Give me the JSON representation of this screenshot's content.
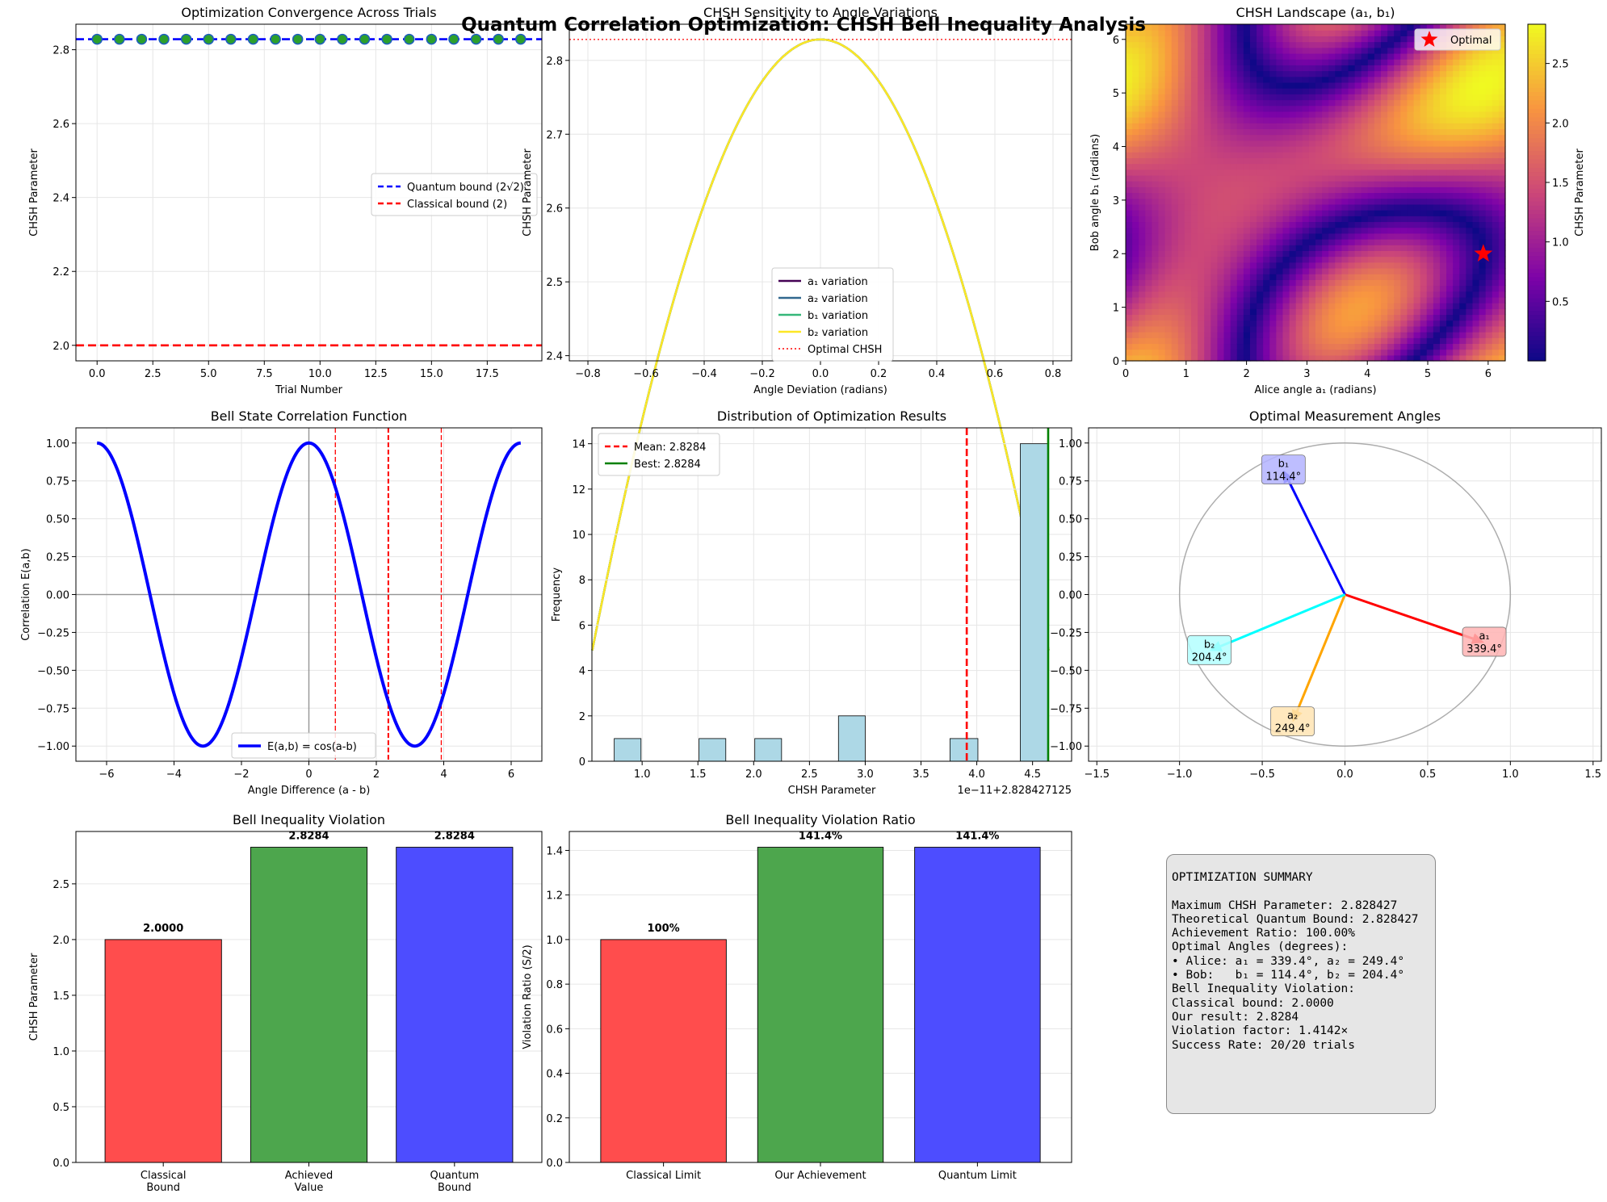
{
  "suptitle": "Quantum Correlation Optimization: CHSH Bell Inequality Analysis",
  "colors": {
    "quantum": "#0000ff",
    "classical": "#ff0000",
    "marker_face": "#2ca02c",
    "hist_fill": "#add8e6",
    "bar_red": "#ff4d4d",
    "bar_green": "#4da64d",
    "bar_blue": "#4d4dff",
    "a1": "#ff0000",
    "a2": "#ffa500",
    "b1": "#0000ff",
    "b2": "#00ffff"
  },
  "summary": {
    "title": "OPTIMIZATION SUMMARY",
    "lines": [
      "Maximum CHSH Parameter: 2.828427",
      "Theoretical Quantum Bound: 2.828427",
      "Achievement Ratio: 100.00%",
      "",
      "Optimal Angles (degrees):",
      "• Alice: a₁ = 339.4°, a₂ = 249.4°",
      "• Bob:   b₁ = 114.4°, b₂ = 204.4°",
      "",
      "Bell Inequality Violation:",
      "Classical bound: 2.0000",
      "Our result: 2.8284",
      "Violation factor: 1.4142×",
      "",
      "Success Rate: 20/20 trials"
    ]
  },
  "chart_data": [
    {
      "id": "convergence",
      "type": "scatter",
      "title": "Optimization Convergence Across Trials",
      "xlabel": "Trial Number",
      "ylabel": "CHSH Parameter",
      "xlim": [
        -0.95,
        19.95
      ],
      "ylim": [
        1.958,
        2.869
      ],
      "xticks": [
        0.0,
        2.5,
        5.0,
        7.5,
        10.0,
        12.5,
        15.0,
        17.5
      ],
      "yticks": [
        2.0,
        2.2,
        2.4,
        2.6,
        2.8
      ],
      "x": [
        0,
        1,
        2,
        3,
        4,
        5,
        6,
        7,
        8,
        9,
        10,
        11,
        12,
        13,
        14,
        15,
        16,
        17,
        18,
        19
      ],
      "y": [
        2.8284,
        2.8284,
        2.8284,
        2.8284,
        2.8284,
        2.8284,
        2.8284,
        2.8284,
        2.8284,
        2.8284,
        2.8284,
        2.8284,
        2.8284,
        2.8284,
        2.8284,
        2.8284,
        2.8284,
        2.8284,
        2.8284,
        2.8284
      ],
      "hlines": [
        {
          "y": 2.8284,
          "color": "#0000ff",
          "label": "Quantum bound (2√2)"
        },
        {
          "y": 2.0,
          "color": "#ff0000",
          "label": "Classical bound (2)"
        }
      ],
      "legend": "center-right",
      "grid": true
    },
    {
      "id": "sensitivity",
      "type": "line",
      "title": "CHSH Sensitivity to Angle Variations",
      "xlabel": "Angle Deviation (radians)",
      "ylabel": "CHSH Parameter",
      "xlim": [
        -0.864,
        0.864
      ],
      "ylim": [
        2.393,
        2.849
      ],
      "xticks": [
        -0.8,
        -0.6,
        -0.4,
        -0.2,
        0.0,
        0.2,
        0.4,
        0.6,
        0.8
      ],
      "yticks": [
        2.4,
        2.5,
        2.6,
        2.7,
        2.8
      ],
      "curve": "2√2·cos(δ)",
      "x_range": [
        -0.785,
        0.785
      ],
      "series": [
        {
          "name": "a₁ variation",
          "color": "#440154"
        },
        {
          "name": "a₂ variation",
          "color": "#31688e"
        },
        {
          "name": "b₁ variation",
          "color": "#35b779"
        },
        {
          "name": "b₂ variation",
          "color": "#fde725"
        }
      ],
      "hline": {
        "y": 2.8284,
        "color": "#ff0000",
        "label": "Optimal CHSH"
      },
      "legend": "lower-center",
      "grid": true
    },
    {
      "id": "landscape",
      "type": "heatmap",
      "title": "CHSH Landscape (a₁, b₁)",
      "xlabel": "Alice angle a₁ (radians)",
      "ylabel": "Bob angle b₁ (radians)",
      "xlim": [
        0,
        6.283
      ],
      "ylim": [
        0,
        6.283
      ],
      "xticks": [
        0,
        1,
        2,
        3,
        4,
        5,
        6
      ],
      "yticks": [
        0,
        1,
        2,
        3,
        4,
        5,
        6
      ],
      "colorbar_label": "CHSH Parameter",
      "colorbar_ticks": [
        0.5,
        1.0,
        1.5,
        2.0,
        2.5
      ],
      "colorbar_range": [
        0,
        2.83
      ],
      "optimal_point": {
        "x": 5.92,
        "y": 2.0,
        "label": "Optimal"
      },
      "legend": "top-right"
    },
    {
      "id": "correlation",
      "type": "line",
      "title": "Bell State Correlation Function",
      "xlabel": "Angle Difference (a - b)",
      "ylabel": "Correlation E(a,b)",
      "xlim": [
        -6.91,
        6.91
      ],
      "ylim": [
        -1.1,
        1.1
      ],
      "xticks": [
        -6,
        -4,
        -2,
        0,
        2,
        4,
        6
      ],
      "yticks": [
        -1.0,
        -0.75,
        -0.5,
        -0.25,
        0.0,
        0.25,
        0.5,
        0.75,
        1.0
      ],
      "series": [
        {
          "name": "E(a,b) = cos(a-b)",
          "color": "#0000ff",
          "x_range": [
            -6.283,
            6.283
          ]
        }
      ],
      "vlines": [
        0.785,
        2.356,
        3.927
      ],
      "legend": "lower-center",
      "grid": true
    },
    {
      "id": "histogram",
      "type": "bar",
      "title": "Distribution of Optimization Results",
      "xlabel": "CHSH Parameter",
      "ylabel": "Frequency",
      "offset_label": "1e−11+2.828427125",
      "xlim": [
        0.55,
        4.85
      ],
      "ylim": [
        0,
        14.7
      ],
      "xticks": [
        1.0,
        1.5,
        2.0,
        2.5,
        3.0,
        3.5,
        4.0,
        4.5
      ],
      "yticks": [
        0,
        2,
        4,
        6,
        8,
        10,
        12,
        14
      ],
      "bins": [
        {
          "x0": 0.75,
          "x1": 0.99,
          "count": 1
        },
        {
          "x0": 1.51,
          "x1": 1.75,
          "count": 1
        },
        {
          "x0": 2.01,
          "x1": 2.25,
          "count": 1
        },
        {
          "x0": 2.76,
          "x1": 3.0,
          "count": 2
        },
        {
          "x0": 3.76,
          "x1": 4.01,
          "count": 1
        },
        {
          "x0": 4.39,
          "x1": 4.64,
          "count": 14
        }
      ],
      "mean": {
        "x": 3.91,
        "label": "Mean: 2.8284"
      },
      "best": {
        "x": 4.64,
        "label": "Best: 2.8284"
      },
      "legend": "top-left",
      "grid": true
    },
    {
      "id": "angles",
      "type": "scatter",
      "title": "Optimal Measurement Angles",
      "xlim": [
        -1.55,
        1.55
      ],
      "ylim": [
        -1.1,
        1.1
      ],
      "xticks": [
        -1.5,
        -1.0,
        -0.5,
        0.0,
        0.5,
        1.0,
        1.5
      ],
      "yticks": [
        -1.0,
        -0.75,
        -0.5,
        -0.25,
        0.0,
        0.25,
        0.5,
        0.75,
        1.0
      ],
      "vectors": [
        {
          "name": "a₁",
          "deg": 339.4,
          "label": "339.4°",
          "color": "#ff0000",
          "box": "#ffb3b3"
        },
        {
          "name": "a₂",
          "deg": 249.4,
          "label": "249.4°",
          "color": "#ffa500",
          "box": "#ffe4b3"
        },
        {
          "name": "b₁",
          "deg": 114.4,
          "label": "114.4°",
          "color": "#0000ff",
          "box": "#b3b3ff"
        },
        {
          "name": "b₂",
          "deg": 204.4,
          "label": "204.4°",
          "color": "#00ffff",
          "box": "#b3ffff"
        }
      ],
      "grid": true
    },
    {
      "id": "violation",
      "type": "bar",
      "title": "Bell Inequality Violation",
      "ylabel": "CHSH Parameter",
      "ylim": [
        0,
        2.97
      ],
      "yticks": [
        0.0,
        0.5,
        1.0,
        1.5,
        2.0,
        2.5
      ],
      "categories": [
        "Classical\nBound",
        "Achieved\nValue",
        "Quantum\nBound"
      ],
      "values": [
        2.0,
        2.8284,
        2.8284
      ],
      "labels": [
        "2.0000",
        "2.8284",
        "2.8284"
      ],
      "colors": [
        "#ff4d4d",
        "#4da64d",
        "#4d4dff"
      ],
      "grid": true
    },
    {
      "id": "ratio",
      "type": "bar",
      "title": "Bell Inequality Violation Ratio",
      "ylabel": "Violation Ratio (S/2)",
      "ylim": [
        0,
        1.485
      ],
      "yticks": [
        0.0,
        0.2,
        0.4,
        0.6,
        0.8,
        1.0,
        1.2,
        1.4
      ],
      "categories": [
        "Classical Limit",
        "Our Achievement",
        "Quantum Limit"
      ],
      "values": [
        1.0,
        1.4142,
        1.4142
      ],
      "labels": [
        "100%",
        "141.4%",
        "141.4%"
      ],
      "colors": [
        "#ff4d4d",
        "#4da64d",
        "#4d4dff"
      ],
      "grid": true
    }
  ]
}
